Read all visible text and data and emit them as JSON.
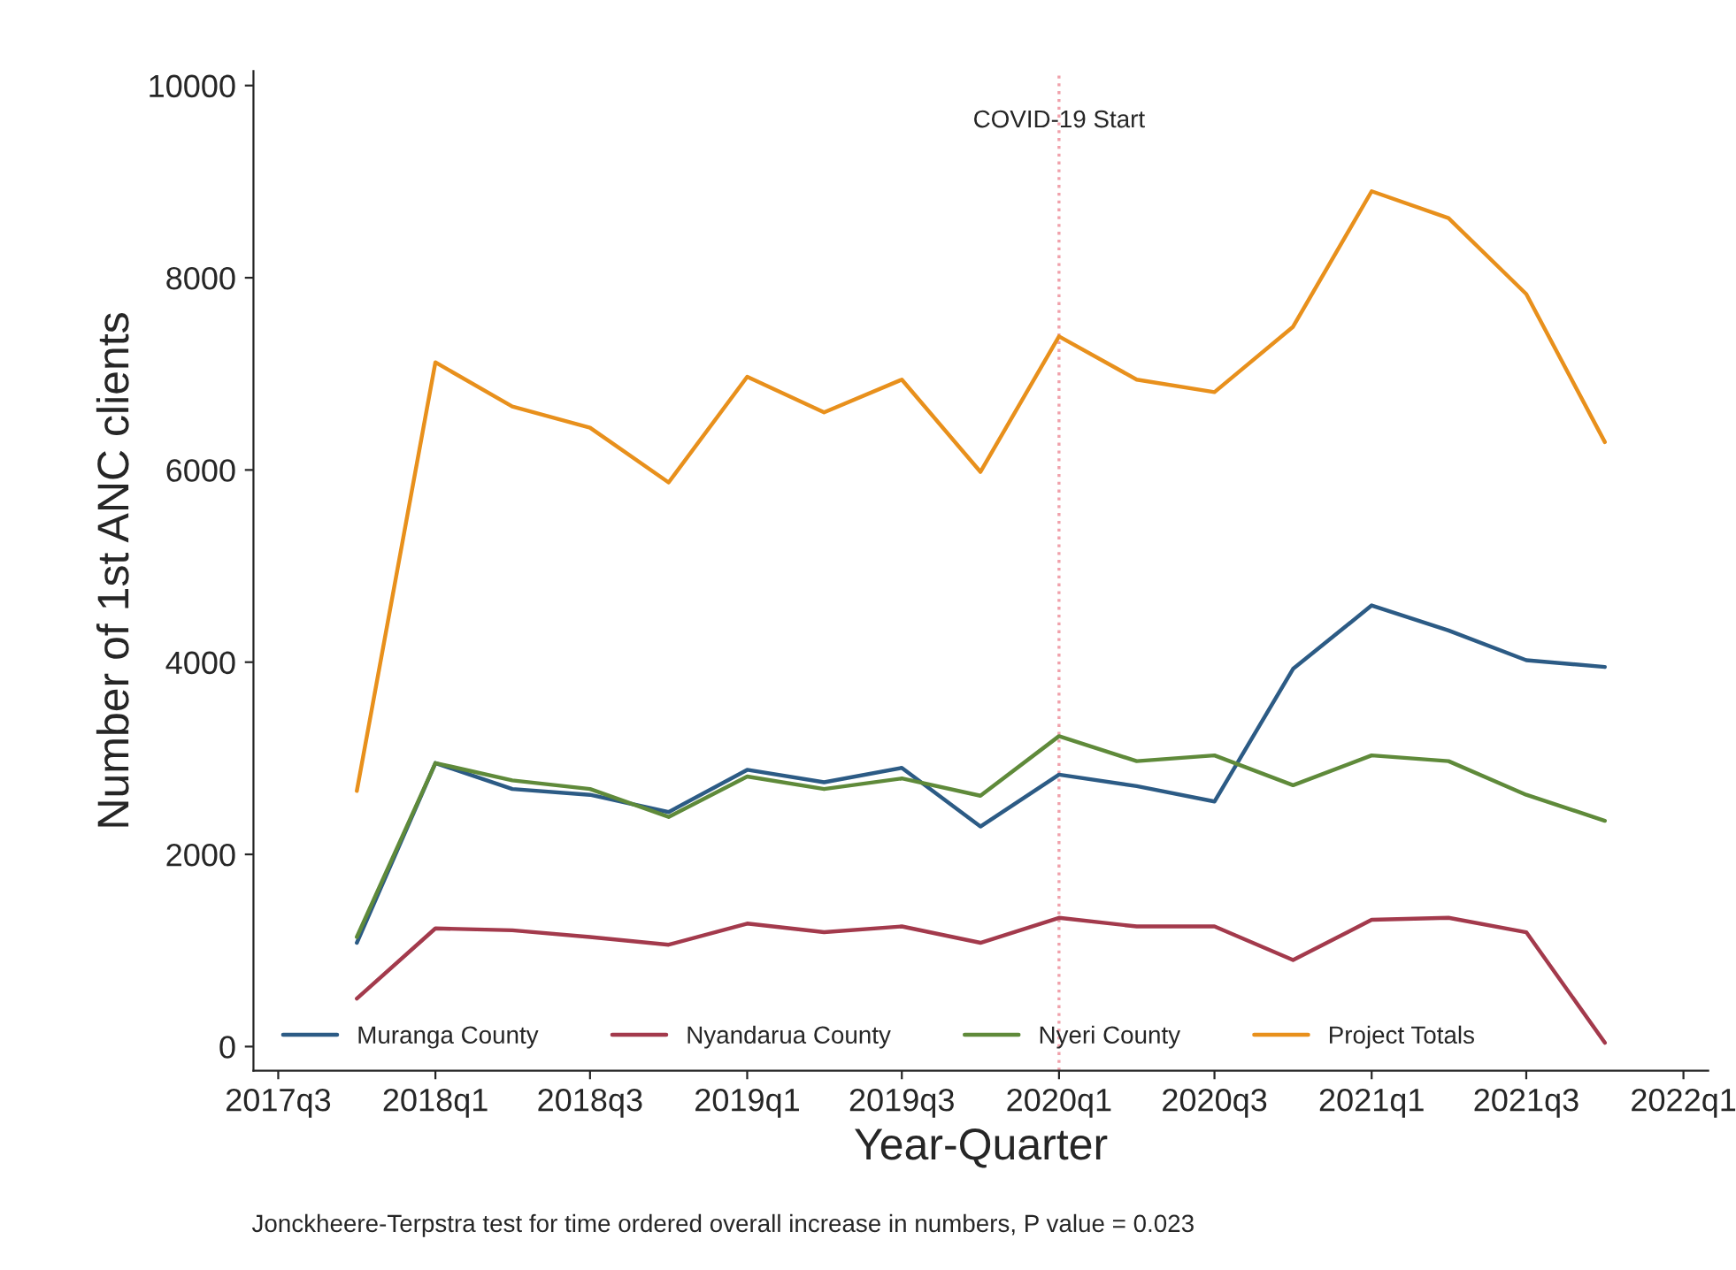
{
  "chart_data": {
    "type": "line",
    "xlabel": "Year-Quarter",
    "ylabel": "Number of 1st ANC clients",
    "x": [
      "2017-10",
      "2018-01",
      "2018-04",
      "2018-07",
      "2018-10",
      "2019-01",
      "2019-04",
      "2019-07",
      "2019-10",
      "2020-01",
      "2020-04",
      "2020-07",
      "2020-10",
      "2021-01",
      "2021-04",
      "2021-07",
      "2021-10"
    ],
    "series": [
      {
        "name": "Muranga County",
        "color": "#2c5b85",
        "values": [
          1080,
          2950,
          2680,
          2620,
          2440,
          2880,
          2750,
          2900,
          2290,
          2830,
          2710,
          2550,
          3930,
          4590,
          4330,
          4020,
          3950
        ]
      },
      {
        "name": "Nyandarua County",
        "color": "#a33a4c",
        "values": [
          500,
          1230,
          1210,
          1140,
          1060,
          1280,
          1190,
          1250,
          1080,
          1340,
          1250,
          1250,
          900,
          1320,
          1340,
          1190,
          40
        ]
      },
      {
        "name": "Nyeri County",
        "color": "#5f8a3a",
        "values": [
          1140,
          2950,
          2770,
          2680,
          2390,
          2810,
          2680,
          2790,
          2610,
          3230,
          2970,
          3030,
          2720,
          3030,
          2970,
          2620,
          2350
        ]
      },
      {
        "name": "Project Totals",
        "color": "#e8901c",
        "values": [
          2660,
          7120,
          6660,
          6440,
          5870,
          6970,
          6600,
          6940,
          5980,
          7390,
          6940,
          6810,
          7490,
          8900,
          8620,
          7830,
          6290
        ]
      }
    ],
    "xlim": [
      "2017-06-02",
      "2022-01-30"
    ],
    "xticks": [
      {
        "value": "2017-07",
        "label": "2017q3"
      },
      {
        "value": "2018-01",
        "label": "2018q1"
      },
      {
        "value": "2018-07",
        "label": "2018q3"
      },
      {
        "value": "2019-01",
        "label": "2019q1"
      },
      {
        "value": "2019-07",
        "label": "2019q3"
      },
      {
        "value": "2020-01",
        "label": "2020q1"
      },
      {
        "value": "2020-07",
        "label": "2020q3"
      },
      {
        "value": "2021-01",
        "label": "2021q1"
      },
      {
        "value": "2021-07",
        "label": "2021q3"
      },
      {
        "value": "2022-01",
        "label": "2022q1"
      }
    ],
    "ylim": [
      -250,
      10150
    ],
    "yticks": [
      0,
      2000,
      4000,
      6000,
      8000,
      10000
    ],
    "ref_lines": [
      {
        "axis": "x",
        "value": "2020-01",
        "label": "COVID-19 Start",
        "color": "#f0a0aa",
        "line_style": "dotted"
      }
    ],
    "annotations": [
      "Jonckheere-Terpstra test for time ordered overall increase in numbers, P value = 0.023"
    ],
    "grid": false,
    "legend": "bottom",
    "marker": "none",
    "line_style": "solid"
  }
}
